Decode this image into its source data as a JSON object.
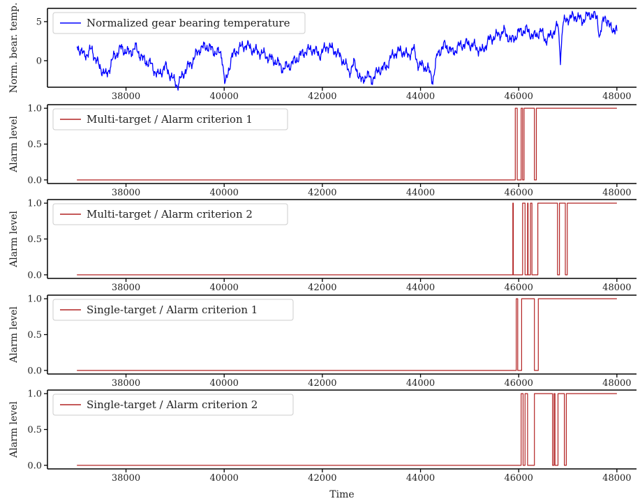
{
  "chart_data": [
    {
      "type": "line",
      "ylabel": "Norm. bear. temp.",
      "xlim": [
        36400,
        48400
      ],
      "ylim": [
        -3.4,
        6.7
      ],
      "xticks": [
        38000,
        40000,
        42000,
        44000,
        46000,
        48000
      ],
      "yticks": [
        0,
        5
      ],
      "legend_position": "top-left",
      "series": [
        {
          "name": "Normalized gear bearing temperature",
          "color": "#0000ff",
          "knots": [
            [
              37000,
              1.8
            ],
            [
              37150,
              0.5
            ],
            [
              37300,
              1.3
            ],
            [
              37450,
              -0.8
            ],
            [
              37600,
              -2.0
            ],
            [
              37750,
              0.4
            ],
            [
              37900,
              1.6
            ],
            [
              38050,
              1.0
            ],
            [
              38200,
              1.7
            ],
            [
              38350,
              0.2
            ],
            [
              38500,
              -0.3
            ],
            [
              38650,
              -1.8
            ],
            [
              38800,
              -0.6
            ],
            [
              38950,
              -2.2
            ],
            [
              39050,
              -3.0
            ],
            [
              39200,
              -1.2
            ],
            [
              39350,
              0.0
            ],
            [
              39500,
              1.6
            ],
            [
              39650,
              1.9
            ],
            [
              39800,
              1.2
            ],
            [
              39950,
              0.8
            ],
            [
              40020,
              -3.2
            ],
            [
              40150,
              0.4
            ],
            [
              40300,
              1.5
            ],
            [
              40450,
              1.9
            ],
            [
              40600,
              1.2
            ],
            [
              40750,
              0.9
            ],
            [
              40900,
              0.3
            ],
            [
              41050,
              -0.2
            ],
            [
              41200,
              -1.1
            ],
            [
              41350,
              -0.6
            ],
            [
              41500,
              0.3
            ],
            [
              41650,
              1.2
            ],
            [
              41800,
              1.5
            ],
            [
              41950,
              0.8
            ],
            [
              42100,
              2.0
            ],
            [
              42250,
              1.4
            ],
            [
              42400,
              0.4
            ],
            [
              42550,
              -1.3
            ],
            [
              42650,
              -0.2
            ],
            [
              42800,
              -2.6
            ],
            [
              42900,
              -1.6
            ],
            [
              43000,
              -2.4
            ],
            [
              43150,
              -1.1
            ],
            [
              43300,
              -0.7
            ],
            [
              43450,
              0.9
            ],
            [
              43600,
              1.3
            ],
            [
              43750,
              0.6
            ],
            [
              43850,
              1.5
            ],
            [
              43950,
              -0.5
            ],
            [
              44150,
              -1.1
            ],
            [
              44250,
              -2.6
            ],
            [
              44350,
              0.8
            ],
            [
              44500,
              1.9
            ],
            [
              44650,
              0.9
            ],
            [
              44800,
              1.8
            ],
            [
              44950,
              2.1
            ],
            [
              45100,
              1.8
            ],
            [
              45250,
              1.1
            ],
            [
              45400,
              2.7
            ],
            [
              45550,
              3.2
            ],
            [
              45700,
              3.8
            ],
            [
              45850,
              2.6
            ],
            [
              46000,
              3.7
            ],
            [
              46150,
              4.1
            ],
            [
              46300,
              3.2
            ],
            [
              46450,
              3.9
            ],
            [
              46550,
              2.8
            ],
            [
              46650,
              3.3
            ],
            [
              46800,
              4.6
            ],
            [
              46850,
              0.5
            ],
            [
              46900,
              4.8
            ],
            [
              47000,
              5.5
            ],
            [
              47150,
              5.7
            ],
            [
              47300,
              5.2
            ],
            [
              47450,
              5.9
            ],
            [
              47600,
              5.5
            ],
            [
              47650,
              2.9
            ],
            [
              47750,
              5.8
            ],
            [
              47850,
              4.2
            ],
            [
              48000,
              3.8
            ]
          ]
        }
      ]
    },
    {
      "type": "line",
      "ylabel": "Alarm level",
      "xlim": [
        36400,
        48400
      ],
      "ylim": [
        -0.05,
        1.05
      ],
      "xticks": [
        38000,
        40000,
        42000,
        44000,
        46000,
        48000
      ],
      "yticks": [
        0.0,
        0.5,
        1.0
      ],
      "legend_position": "top-left",
      "series": [
        {
          "name": "Multi-target / Alarm criterion 1",
          "color": "#b22222",
          "x": [
            37000,
            45930,
            45930,
            45970,
            45970,
            46050,
            46050,
            46080,
            46080,
            46110,
            46110,
            46320,
            46320,
            46360,
            46360,
            48000
          ],
          "y": [
            0,
            0,
            1,
            1,
            0,
            0,
            1,
            1,
            0,
            0,
            1,
            1,
            0,
            0,
            1,
            1
          ]
        }
      ]
    },
    {
      "type": "line",
      "ylabel": "Alarm level",
      "xlim": [
        36400,
        48400
      ],
      "ylim": [
        -0.05,
        1.05
      ],
      "xticks": [
        38000,
        40000,
        42000,
        44000,
        46000,
        48000
      ],
      "yticks": [
        0.0,
        0.5,
        1.0
      ],
      "legend_position": "top-left",
      "series": [
        {
          "name": "Multi-target / Alarm criterion 2",
          "color": "#b22222",
          "x": [
            37000,
            45880,
            45880,
            45890,
            45890,
            46080,
            46080,
            46130,
            46130,
            46180,
            46180,
            46190,
            46190,
            46240,
            46240,
            46270,
            46270,
            46390,
            46390,
            46790,
            46790,
            46830,
            46830,
            46950,
            46950,
            46990,
            46990,
            48000
          ],
          "y": [
            0,
            0,
            1,
            1,
            0,
            0,
            1,
            1,
            0,
            0,
            1,
            1,
            0,
            0,
            1,
            1,
            0,
            0,
            1,
            1,
            0,
            0,
            1,
            1,
            0,
            0,
            1,
            1
          ]
        }
      ]
    },
    {
      "type": "line",
      "ylabel": "Alarm level",
      "xlim": [
        36400,
        48400
      ],
      "ylim": [
        -0.05,
        1.05
      ],
      "xticks": [
        38000,
        40000,
        42000,
        44000,
        46000,
        48000
      ],
      "yticks": [
        0.0,
        0.5,
        1.0
      ],
      "legend_position": "top-left",
      "series": [
        {
          "name": "Single-target / Alarm criterion 1",
          "color": "#b22222",
          "x": [
            37000,
            45950,
            45950,
            45980,
            45980,
            46060,
            46060,
            46320,
            46320,
            46400,
            46400,
            48000
          ],
          "y": [
            0,
            0,
            1,
            1,
            0,
            0,
            1,
            1,
            0,
            0,
            1,
            1
          ]
        }
      ]
    },
    {
      "type": "line",
      "ylabel": "Alarm level",
      "xlabel": "Time",
      "xlim": [
        36400,
        48400
      ],
      "ylim": [
        -0.05,
        1.05
      ],
      "xticks": [
        38000,
        40000,
        42000,
        44000,
        46000,
        48000
      ],
      "yticks": [
        0.0,
        0.5,
        1.0
      ],
      "legend_position": "top-left",
      "series": [
        {
          "name": "Single-target / Alarm criterion 2",
          "color": "#b22222",
          "x": [
            37000,
            46050,
            46050,
            46090,
            46090,
            46130,
            46130,
            46180,
            46180,
            46320,
            46320,
            46690,
            46690,
            46720,
            46720,
            46740,
            46740,
            46800,
            46800,
            46930,
            46930,
            46970,
            46970,
            48000
          ],
          "y": [
            0,
            0,
            1,
            1,
            0,
            0,
            1,
            1,
            0,
            0,
            1,
            1,
            0,
            0,
            1,
            1,
            0,
            0,
            1,
            1,
            0,
            0,
            1,
            1
          ]
        }
      ]
    }
  ]
}
